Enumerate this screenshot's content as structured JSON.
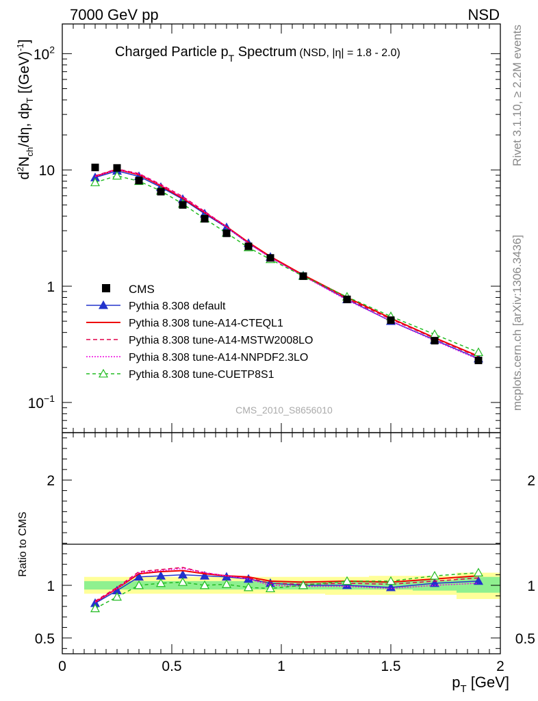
{
  "header": {
    "left": "7000 GeV pp",
    "right": "NSD"
  },
  "side": {
    "rivet": "Rivet 3.1.10, ≥ 2.2M events",
    "mcplots": "mcplots.cern.ch [arXiv:1306.3436]"
  },
  "watermark": "CMS_2010_S8656010",
  "chart_data": [
    {
      "type": "line",
      "panel": "main",
      "title": "Charged Particle p",
      "title_sub": "T",
      "title_tail": "Spectrum",
      "title_qual": "(NSD, |η| = 1.8 - 2.0)",
      "ylabel_parts": [
        "d",
        "2",
        "N",
        "ch",
        "/dη, dp",
        "T",
        " [(GeV)",
        "-1",
        "]"
      ],
      "yscale": "log",
      "ylim": [
        0.055,
        180
      ],
      "xlim": [
        0,
        2
      ],
      "yticks": [
        {
          "v": 0.1,
          "b": "10",
          "e": "−1"
        },
        {
          "v": 1,
          "b": "1",
          "e": ""
        },
        {
          "v": 10,
          "b": "10",
          "e": ""
        },
        {
          "v": 100,
          "b": "10",
          "e": "2"
        }
      ],
      "x": [
        0.15,
        0.25,
        0.35,
        0.45,
        0.55,
        0.65,
        0.75,
        0.85,
        0.95,
        1.1,
        1.3,
        1.5,
        1.7,
        1.9
      ],
      "cms": [
        10.5,
        10.4,
        8.1,
        6.5,
        5.0,
        3.8,
        2.85,
        2.2,
        1.75,
        1.22,
        0.77,
        0.51,
        0.34,
        0.23
      ],
      "series": [
        {
          "name": "Pythia 8.308 default",
          "color": "#2233cc",
          "dash": "",
          "marker": "triangle-filled",
          "values": [
            8.6,
            9.8,
            8.8,
            7.1,
            5.6,
            4.2,
            3.2,
            2.34,
            1.78,
            1.23,
            0.77,
            0.5,
            0.345,
            0.238
          ]
        },
        {
          "name": "Pythia 8.308 tune-A14-CTEQL1",
          "color": "#ee0000",
          "dash": "",
          "marker": "none",
          "values": [
            8.8,
            10.1,
            9.1,
            7.3,
            5.7,
            4.3,
            3.25,
            2.38,
            1.8,
            1.25,
            0.8,
            0.53,
            0.36,
            0.25
          ]
        },
        {
          "name": "Pythia 8.308 tune-A14-MSTW2008LO",
          "color": "#e0004a",
          "dash": "6,4",
          "marker": "none",
          "values": [
            8.9,
            10.2,
            9.3,
            7.5,
            5.9,
            4.4,
            3.25,
            2.36,
            1.78,
            1.23,
            0.78,
            0.52,
            0.355,
            0.245
          ]
        },
        {
          "name": "Pythia 8.308 tune-A14-NNPDF2.3LO",
          "color": "#ee00dd",
          "dash": "2,2",
          "marker": "none",
          "values": [
            8.8,
            10.1,
            9.2,
            7.4,
            5.8,
            4.35,
            3.22,
            2.33,
            1.76,
            1.22,
            0.76,
            0.5,
            0.34,
            0.235
          ]
        },
        {
          "name": "Pythia 8.308 tune-CUETP8S1",
          "color": "#22bb22",
          "dash": "5,4",
          "marker": "triangle-open",
          "values": [
            7.8,
            8.9,
            8.0,
            6.6,
            5.1,
            3.8,
            2.87,
            2.15,
            1.7,
            1.22,
            0.81,
            0.55,
            0.385,
            0.27
          ]
        }
      ],
      "legend": {
        "data_label": "CMS",
        "placement": "left"
      }
    },
    {
      "type": "line",
      "panel": "ratio",
      "ylabel": "Ratio to CMS",
      "ylim": [
        0.35,
        2.45
      ],
      "xlim": [
        0,
        2
      ],
      "yticks": [
        0.5,
        1,
        2
      ],
      "xticks": [
        0,
        0.5,
        1,
        1.5,
        2
      ],
      "xlabel_main": "p",
      "xlabel_sub": "T",
      "xlabel_unit": " [GeV]",
      "bands": [
        {
          "x0": 0.1,
          "x1": 0.2,
          "lo_y": 0.92,
          "hi_y": 1.08,
          "lo_g": 0.96,
          "hi_g": 1.04
        },
        {
          "x0": 0.2,
          "x1": 0.3,
          "lo_y": 0.92,
          "hi_y": 1.08,
          "lo_g": 0.96,
          "hi_g": 1.04
        },
        {
          "x0": 0.3,
          "x1": 0.4,
          "lo_y": 0.92,
          "hi_y": 1.08,
          "lo_g": 0.96,
          "hi_g": 1.04
        },
        {
          "x0": 0.4,
          "x1": 0.5,
          "lo_y": 0.92,
          "hi_y": 1.08,
          "lo_g": 0.96,
          "hi_g": 1.04
        },
        {
          "x0": 0.5,
          "x1": 0.6,
          "lo_y": 0.92,
          "hi_y": 1.08,
          "lo_g": 0.96,
          "hi_g": 1.04
        },
        {
          "x0": 0.6,
          "x1": 0.7,
          "lo_y": 0.92,
          "hi_y": 1.08,
          "lo_g": 0.96,
          "hi_g": 1.04
        },
        {
          "x0": 0.7,
          "x1": 0.8,
          "lo_y": 0.92,
          "hi_y": 1.08,
          "lo_g": 0.96,
          "hi_g": 1.04
        },
        {
          "x0": 0.8,
          "x1": 0.9,
          "lo_y": 0.92,
          "hi_y": 1.08,
          "lo_g": 0.96,
          "hi_g": 1.04
        },
        {
          "x0": 0.9,
          "x1": 1.0,
          "lo_y": 0.92,
          "hi_y": 1.08,
          "lo_g": 0.96,
          "hi_g": 1.04
        },
        {
          "x0": 1.0,
          "x1": 1.2,
          "lo_y": 0.92,
          "hi_y": 1.08,
          "lo_g": 0.96,
          "hi_g": 1.04
        },
        {
          "x0": 1.2,
          "x1": 1.4,
          "lo_y": 0.91,
          "hi_y": 1.08,
          "lo_g": 0.96,
          "hi_g": 1.04
        },
        {
          "x0": 1.4,
          "x1": 1.6,
          "lo_y": 0.91,
          "hi_y": 1.09,
          "lo_g": 0.96,
          "hi_g": 1.04
        },
        {
          "x0": 1.6,
          "x1": 1.8,
          "lo_y": 0.91,
          "hi_y": 1.09,
          "lo_g": 0.95,
          "hi_g": 1.05
        },
        {
          "x0": 1.8,
          "x1": 2.0,
          "lo_y": 0.87,
          "hi_y": 1.12,
          "lo_g": 0.93,
          "hi_g": 1.08
        }
      ],
      "x": [
        0.15,
        0.25,
        0.35,
        0.45,
        0.55,
        0.65,
        0.75,
        0.85,
        0.95,
        1.1,
        1.3,
        1.5,
        1.7,
        1.9
      ],
      "series": [
        {
          "name": "Pythia 8.308 default",
          "color": "#2233cc",
          "dash": "",
          "marker": "triangle-filled",
          "values": [
            0.83,
            0.95,
            1.08,
            1.09,
            1.1,
            1.09,
            1.08,
            1.06,
            1.02,
            1.0,
            1.0,
            0.98,
            1.02,
            1.04
          ]
        },
        {
          "name": "Pythia 8.308 tune-A14-CTEQL1",
          "color": "#ee0000",
          "dash": "",
          "marker": "none",
          "values": [
            0.84,
            0.97,
            1.11,
            1.13,
            1.14,
            1.11,
            1.09,
            1.08,
            1.04,
            1.03,
            1.04,
            1.03,
            1.06,
            1.09
          ]
        },
        {
          "name": "Pythia 8.308 tune-A14-MSTW2008LO",
          "color": "#e0004a",
          "dash": "6,4",
          "marker": "none",
          "values": [
            0.85,
            0.98,
            1.13,
            1.15,
            1.17,
            1.12,
            1.09,
            1.07,
            1.02,
            1.01,
            1.02,
            1.01,
            1.04,
            1.07
          ]
        },
        {
          "name": "Pythia 8.308 tune-A14-NNPDF2.3LO",
          "color": "#ee00dd",
          "dash": "2,2",
          "marker": "none",
          "values": [
            0.84,
            0.97,
            1.12,
            1.14,
            1.16,
            1.12,
            1.09,
            1.06,
            1.0,
            0.99,
            0.99,
            0.97,
            1.0,
            1.02
          ]
        },
        {
          "name": "Pythia 8.308 tune-CUETP8S1",
          "color": "#22bb22",
          "dash": "5,4",
          "marker": "triangle-open",
          "values": [
            0.78,
            0.89,
            1.0,
            1.02,
            1.03,
            1.0,
            1.01,
            0.98,
            0.97,
            1.0,
            1.04,
            1.04,
            1.09,
            1.12
          ]
        }
      ]
    }
  ]
}
